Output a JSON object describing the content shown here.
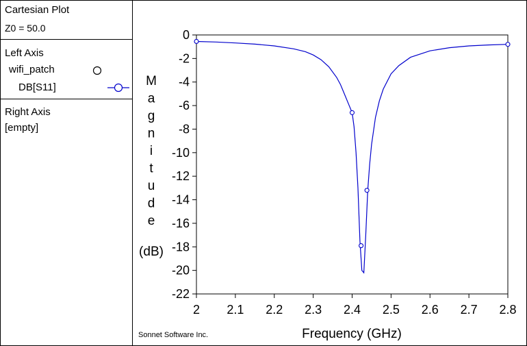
{
  "panel": {
    "title": "Cartesian Plot",
    "z0": "Z0 = 50.0",
    "left_axis_heading": "Left Axis",
    "project_name": "wifi_patch",
    "trace_name": "DB[S11]",
    "right_axis_heading": "Right Axis",
    "right_axis_value": "[empty]"
  },
  "credit": "Sonnet Software Inc.",
  "chart_data": {
    "type": "line",
    "xlabel": "Frequency (GHz)",
    "ylabel_letters": [
      "M",
      "a",
      "g",
      "n",
      "i",
      "t",
      "u",
      "d",
      "e"
    ],
    "ylabel_unit": "(dB)",
    "xlim": [
      2.0,
      2.8
    ],
    "ylim": [
      -22,
      0
    ],
    "xticks": [
      "2",
      "2.1",
      "2.2",
      "2.3",
      "2.4",
      "2.5",
      "2.6",
      "2.7",
      "2.8"
    ],
    "yticks": [
      "0",
      "-2",
      "-4",
      "-6",
      "-8",
      "-10",
      "-12",
      "-14",
      "-16",
      "-18",
      "-20",
      "-22"
    ],
    "grid": false,
    "line_color": "#0000cc",
    "series": [
      {
        "name": "DB[S11]",
        "x": [
          2.0,
          2.05,
          2.1,
          2.15,
          2.2,
          2.25,
          2.28,
          2.3,
          2.32,
          2.34,
          2.36,
          2.37,
          2.38,
          2.39,
          2.4,
          2.405,
          2.41,
          2.415,
          2.42,
          2.425,
          2.43,
          2.435,
          2.44,
          2.445,
          2.45,
          2.46,
          2.47,
          2.48,
          2.5,
          2.52,
          2.55,
          2.6,
          2.65,
          2.7,
          2.75,
          2.8
        ],
        "y": [
          -0.55,
          -0.6,
          -0.68,
          -0.78,
          -0.93,
          -1.18,
          -1.42,
          -1.7,
          -2.1,
          -2.7,
          -3.6,
          -4.2,
          -5.0,
          -5.8,
          -6.6,
          -7.8,
          -10.0,
          -13.0,
          -17.5,
          -20.0,
          -20.2,
          -17.0,
          -13.2,
          -11.0,
          -9.3,
          -7.0,
          -5.6,
          -4.6,
          -3.3,
          -2.6,
          -1.9,
          -1.35,
          -1.08,
          -0.93,
          -0.85,
          -0.8
        ]
      }
    ],
    "markers": {
      "x": [
        2.0,
        2.4,
        2.423,
        2.438,
        2.8
      ],
      "y": [
        -0.55,
        -6.6,
        -17.9,
        -13.2,
        -0.8
      ]
    }
  }
}
